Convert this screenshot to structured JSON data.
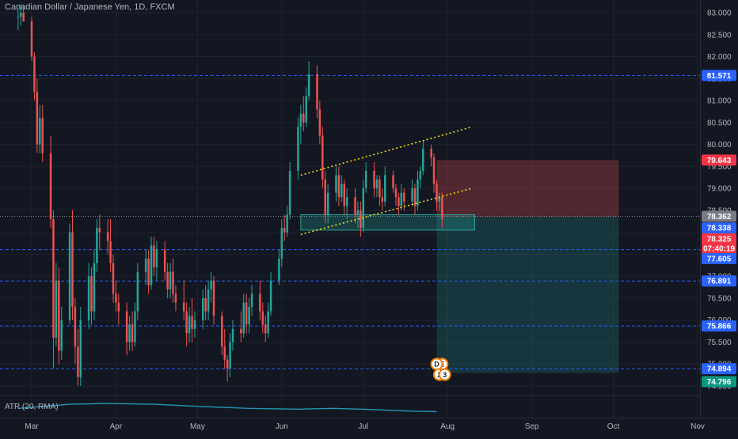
{
  "header": {
    "title": "Canadian Dollar / Japanese Yen, 1D, FXCM"
  },
  "indicator": {
    "label": "ATR (20, RMA)"
  },
  "colors": {
    "background": "#131722",
    "grid": "#1e222d",
    "up": "#26a69a",
    "down": "#ef5350",
    "level_line": "#2962ff",
    "level_label": "#2962ff",
    "channel": "#f5e113",
    "stop_zone": "#ef5350",
    "target_zone": "#26a69a",
    "atr_line": "#2196b6",
    "axis_text": "#b2b5be"
  },
  "chart_data": {
    "type": "candlestick",
    "title": "Canadian Dollar / Japanese Yen, 1D, FXCM",
    "x_ticks": [
      "Mar",
      "Apr",
      "May",
      "Jun",
      "Jul",
      "Aug",
      "Sep",
      "Oct",
      "Nov"
    ],
    "y_ticks": [
      "83.000",
      "82.500",
      "82.000",
      "81.500",
      "81.000",
      "80.500",
      "80.000",
      "79.500",
      "79.000",
      "78.500",
      "78.000",
      "77.500",
      "77.000",
      "76.500",
      "76.000",
      "75.500",
      "75.000",
      "74.500"
    ],
    "ylim": [
      74.3,
      83.2
    ],
    "horizontal_levels": [
      81.571,
      77.605,
      76.891,
      75.866,
      74.894
    ],
    "price_labels": [
      {
        "value": "81.571",
        "type": "level"
      },
      {
        "value": "79.643",
        "type": "stop"
      },
      {
        "value": "78.362",
        "type": "last"
      },
      {
        "value": "78.338",
        "type": "level"
      },
      {
        "value": "78.325",
        "type": "last"
      },
      {
        "value": "07:40:19",
        "type": "countdown"
      },
      {
        "value": "77.605",
        "type": "level"
      },
      {
        "value": "76.891",
        "type": "level"
      },
      {
        "value": "75.866",
        "type": "level"
      },
      {
        "value": "74.894",
        "type": "level"
      },
      {
        "value": "74.796",
        "type": "target"
      }
    ],
    "position": {
      "type": "short",
      "entry": 78.35,
      "stop": 79.643,
      "target": 74.796,
      "start": "2021-07-28",
      "end": "2021-10-03"
    },
    "support_zone": {
      "top": 78.4,
      "bottom": 78.05,
      "start": "2021-06-08",
      "end": "2021-08-11"
    },
    "channel": {
      "upper": {
        "start": [
          "2021-06-08",
          79.3
        ],
        "end": [
          "2021-08-10",
          80.4
        ]
      },
      "lower": {
        "start": [
          "2021-06-08",
          77.95
        ],
        "end": [
          "2021-08-10",
          79.0
        ]
      }
    },
    "badges": [
      {
        "label": "E",
        "date": "2021-07-30",
        "value": 75.0
      },
      {
        "label": "D",
        "date": "2021-07-28",
        "value": 75.0
      },
      {
        "label": "2",
        "date": "2021-07-29",
        "value": 74.76
      },
      {
        "label": "3",
        "date": "2021-07-31",
        "value": 74.76
      }
    ],
    "atr": {
      "dates": [
        "2021-02-24",
        "2021-03-15",
        "2021-03-28",
        "2021-04-15",
        "2021-05-01",
        "2021-05-20",
        "2021-06-07",
        "2021-06-20",
        "2021-07-05",
        "2021-07-20",
        "2021-07-28"
      ],
      "values": [
        0.5,
        0.6,
        0.62,
        0.6,
        0.55,
        0.5,
        0.48,
        0.5,
        0.47,
        0.43,
        0.42
      ]
    },
    "candles": [
      {
        "d": "2021-02-24",
        "o": 82.9,
        "h": 83.1,
        "l": 82.6,
        "c": 82.9
      },
      {
        "d": "2021-02-25",
        "o": 82.9,
        "h": 83.2,
        "l": 82.7,
        "c": 83.0
      },
      {
        "d": "2021-02-26",
        "o": 83.0,
        "h": 83.15,
        "l": 82.8,
        "c": 82.8
      },
      {
        "d": "2021-03-01",
        "o": 82.8,
        "h": 82.9,
        "l": 81.9,
        "c": 82.0
      },
      {
        "d": "2021-03-02",
        "o": 82.0,
        "h": 82.1,
        "l": 81.0,
        "c": 81.2
      },
      {
        "d": "2021-03-03",
        "o": 81.2,
        "h": 81.5,
        "l": 79.8,
        "c": 80.0
      },
      {
        "d": "2021-03-04",
        "o": 80.0,
        "h": 80.9,
        "l": 79.8,
        "c": 80.6
      },
      {
        "d": "2021-03-05",
        "o": 80.6,
        "h": 80.9,
        "l": 79.6,
        "c": 79.8
      },
      {
        "d": "2021-03-08",
        "o": 79.8,
        "h": 80.2,
        "l": 78.1,
        "c": 78.3
      },
      {
        "d": "2021-03-09",
        "o": 78.3,
        "h": 78.5,
        "l": 74.9,
        "c": 75.6
      },
      {
        "d": "2021-03-10",
        "o": 75.6,
        "h": 77.3,
        "l": 75.4,
        "c": 76.9
      },
      {
        "d": "2021-03-11",
        "o": 76.9,
        "h": 77.2,
        "l": 75.0,
        "c": 75.3
      },
      {
        "d": "2021-03-12",
        "o": 75.3,
        "h": 76.3,
        "l": 75.1,
        "c": 76.0
      },
      {
        "d": "2021-03-15",
        "o": 76.0,
        "h": 78.2,
        "l": 75.9,
        "c": 78.0
      },
      {
        "d": "2021-03-16",
        "o": 78.0,
        "h": 78.5,
        "l": 76.0,
        "c": 76.3
      },
      {
        "d": "2021-03-17",
        "o": 76.3,
        "h": 76.5,
        "l": 75.0,
        "c": 75.4
      },
      {
        "d": "2021-03-18",
        "o": 75.4,
        "h": 75.8,
        "l": 74.5,
        "c": 74.7
      },
      {
        "d": "2021-03-19",
        "o": 74.7,
        "h": 76.3,
        "l": 74.5,
        "c": 76.0
      },
      {
        "d": "2021-03-22",
        "o": 76.0,
        "h": 77.3,
        "l": 75.8,
        "c": 77.0
      },
      {
        "d": "2021-03-23",
        "o": 77.0,
        "h": 77.2,
        "l": 75.9,
        "c": 76.2
      },
      {
        "d": "2021-03-24",
        "o": 76.2,
        "h": 77.6,
        "l": 76.0,
        "c": 77.3
      },
      {
        "d": "2021-03-25",
        "o": 77.3,
        "h": 78.3,
        "l": 77.1,
        "c": 78.1
      },
      {
        "d": "2021-03-26",
        "o": 78.1,
        "h": 78.4,
        "l": 77.6,
        "c": 78.0
      },
      {
        "d": "2021-03-29",
        "o": 78.0,
        "h": 78.3,
        "l": 77.5,
        "c": 77.8
      },
      {
        "d": "2021-03-30",
        "o": 77.8,
        "h": 78.3,
        "l": 77.1,
        "c": 77.3
      },
      {
        "d": "2021-03-31",
        "o": 77.3,
        "h": 77.5,
        "l": 76.4,
        "c": 76.6
      },
      {
        "d": "2021-04-01",
        "o": 76.6,
        "h": 76.9,
        "l": 76.2,
        "c": 76.4
      },
      {
        "d": "2021-04-02",
        "o": 76.4,
        "h": 76.6,
        "l": 75.9,
        "c": 76.2
      },
      {
        "d": "2021-04-05",
        "o": 76.2,
        "h": 76.4,
        "l": 75.2,
        "c": 75.5
      },
      {
        "d": "2021-04-06",
        "o": 75.5,
        "h": 76.1,
        "l": 75.3,
        "c": 75.9
      },
      {
        "d": "2021-04-07",
        "o": 75.9,
        "h": 76.2,
        "l": 75.3,
        "c": 75.5
      },
      {
        "d": "2021-04-08",
        "o": 75.5,
        "h": 76.4,
        "l": 75.4,
        "c": 76.2
      },
      {
        "d": "2021-04-09",
        "o": 76.2,
        "h": 77.3,
        "l": 76.0,
        "c": 77.1
      },
      {
        "d": "2021-04-12",
        "o": 77.1,
        "h": 77.6,
        "l": 76.8,
        "c": 77.4
      },
      {
        "d": "2021-04-13",
        "o": 77.4,
        "h": 77.6,
        "l": 76.6,
        "c": 76.8
      },
      {
        "d": "2021-04-14",
        "o": 76.8,
        "h": 77.9,
        "l": 76.7,
        "c": 77.7
      },
      {
        "d": "2021-04-15",
        "o": 77.7,
        "h": 77.9,
        "l": 77.0,
        "c": 77.2
      },
      {
        "d": "2021-04-16",
        "o": 77.2,
        "h": 77.8,
        "l": 76.9,
        "c": 77.6
      },
      {
        "d": "2021-04-19",
        "o": 77.6,
        "h": 77.8,
        "l": 76.9,
        "c": 77.1
      },
      {
        "d": "2021-04-20",
        "o": 77.1,
        "h": 77.3,
        "l": 76.5,
        "c": 76.7
      },
      {
        "d": "2021-04-21",
        "o": 76.7,
        "h": 77.3,
        "l": 76.5,
        "c": 77.1
      },
      {
        "d": "2021-04-22",
        "o": 77.1,
        "h": 77.4,
        "l": 76.4,
        "c": 76.6
      },
      {
        "d": "2021-04-23",
        "o": 76.6,
        "h": 76.8,
        "l": 76.2,
        "c": 76.4
      },
      {
        "d": "2021-04-26",
        "o": 76.4,
        "h": 76.9,
        "l": 76.0,
        "c": 76.2
      },
      {
        "d": "2021-04-27",
        "o": 76.2,
        "h": 76.4,
        "l": 75.4,
        "c": 75.7
      },
      {
        "d": "2021-04-28",
        "o": 75.7,
        "h": 76.3,
        "l": 75.5,
        "c": 76.1
      },
      {
        "d": "2021-04-29",
        "o": 76.1,
        "h": 76.5,
        "l": 75.5,
        "c": 75.8
      },
      {
        "d": "2021-04-30",
        "o": 75.8,
        "h": 76.2,
        "l": 75.6,
        "c": 76.0
      },
      {
        "d": "2021-05-03",
        "o": 76.0,
        "h": 76.7,
        "l": 75.8,
        "c": 76.5
      },
      {
        "d": "2021-05-04",
        "o": 76.5,
        "h": 76.8,
        "l": 76.0,
        "c": 76.2
      },
      {
        "d": "2021-05-05",
        "o": 76.2,
        "h": 76.9,
        "l": 76.0,
        "c": 76.7
      },
      {
        "d": "2021-05-06",
        "o": 76.7,
        "h": 77.1,
        "l": 76.4,
        "c": 76.9
      },
      {
        "d": "2021-05-07",
        "o": 76.9,
        "h": 77.0,
        "l": 75.9,
        "c": 76.1
      },
      {
        "d": "2021-05-10",
        "o": 76.1,
        "h": 76.2,
        "l": 75.2,
        "c": 75.4
      },
      {
        "d": "2021-05-11",
        "o": 75.4,
        "h": 75.8,
        "l": 74.9,
        "c": 75.1
      },
      {
        "d": "2021-05-12",
        "o": 75.1,
        "h": 75.2,
        "l": 74.6,
        "c": 74.9
      },
      {
        "d": "2021-05-13",
        "o": 74.9,
        "h": 75.7,
        "l": 74.7,
        "c": 75.5
      },
      {
        "d": "2021-05-14",
        "o": 75.5,
        "h": 76.0,
        "l": 75.3,
        "c": 75.8
      },
      {
        "d": "2021-05-17",
        "o": 75.8,
        "h": 76.2,
        "l": 75.5,
        "c": 75.7
      },
      {
        "d": "2021-05-18",
        "o": 75.7,
        "h": 76.6,
        "l": 75.6,
        "c": 76.4
      },
      {
        "d": "2021-05-19",
        "o": 76.4,
        "h": 76.6,
        "l": 75.7,
        "c": 75.9
      },
      {
        "d": "2021-05-20",
        "o": 75.9,
        "h": 76.5,
        "l": 75.7,
        "c": 76.3
      },
      {
        "d": "2021-05-21",
        "o": 76.3,
        "h": 76.8,
        "l": 76.1,
        "c": 76.6
      },
      {
        "d": "2021-05-24",
        "o": 76.6,
        "h": 76.9,
        "l": 76.0,
        "c": 76.2
      },
      {
        "d": "2021-05-25",
        "o": 76.2,
        "h": 76.4,
        "l": 75.7,
        "c": 75.9
      },
      {
        "d": "2021-05-26",
        "o": 75.9,
        "h": 76.1,
        "l": 75.5,
        "c": 75.7
      },
      {
        "d": "2021-05-27",
        "o": 75.7,
        "h": 76.4,
        "l": 75.6,
        "c": 76.2
      },
      {
        "d": "2021-05-28",
        "o": 76.2,
        "h": 77.1,
        "l": 76.1,
        "c": 76.9
      },
      {
        "d": "2021-05-31",
        "o": 76.9,
        "h": 77.6,
        "l": 76.8,
        "c": 77.4
      },
      {
        "d": "2021-06-01",
        "o": 77.4,
        "h": 78.3,
        "l": 77.2,
        "c": 78.1
      },
      {
        "d": "2021-06-02",
        "o": 78.1,
        "h": 78.4,
        "l": 77.8,
        "c": 78.0
      },
      {
        "d": "2021-06-03",
        "o": 78.0,
        "h": 78.6,
        "l": 77.9,
        "c": 78.4
      },
      {
        "d": "2021-06-04",
        "o": 78.4,
        "h": 79.6,
        "l": 78.3,
        "c": 79.4
      },
      {
        "d": "2021-06-07",
        "o": 79.4,
        "h": 80.6,
        "l": 79.2,
        "c": 80.4
      },
      {
        "d": "2021-06-08",
        "o": 80.4,
        "h": 80.9,
        "l": 80.0,
        "c": 80.7
      },
      {
        "d": "2021-06-09",
        "o": 80.7,
        "h": 81.1,
        "l": 80.3,
        "c": 80.5
      },
      {
        "d": "2021-06-10",
        "o": 80.5,
        "h": 81.3,
        "l": 80.4,
        "c": 81.1
      },
      {
        "d": "2021-06-11",
        "o": 81.1,
        "h": 81.9,
        "l": 81.0,
        "c": 81.6
      },
      {
        "d": "2021-06-14",
        "o": 81.6,
        "h": 81.8,
        "l": 80.6,
        "c": 80.8
      },
      {
        "d": "2021-06-15",
        "o": 80.8,
        "h": 81.0,
        "l": 80.0,
        "c": 80.2
      },
      {
        "d": "2021-06-16",
        "o": 80.2,
        "h": 80.4,
        "l": 79.0,
        "c": 79.2
      },
      {
        "d": "2021-06-17",
        "o": 79.2,
        "h": 79.4,
        "l": 78.2,
        "c": 78.4
      },
      {
        "d": "2021-06-18",
        "o": 78.4,
        "h": 79.1,
        "l": 78.2,
        "c": 78.9
      },
      {
        "d": "2021-06-21",
        "o": 78.9,
        "h": 79.5,
        "l": 78.7,
        "c": 79.3
      },
      {
        "d": "2021-06-22",
        "o": 79.3,
        "h": 79.5,
        "l": 78.6,
        "c": 78.8
      },
      {
        "d": "2021-06-23",
        "o": 78.8,
        "h": 79.3,
        "l": 78.7,
        "c": 79.1
      },
      {
        "d": "2021-06-24",
        "o": 79.1,
        "h": 79.2,
        "l": 78.4,
        "c": 78.6
      },
      {
        "d": "2021-06-25",
        "o": 78.6,
        "h": 79.0,
        "l": 78.3,
        "c": 78.8
      },
      {
        "d": "2021-06-28",
        "o": 78.8,
        "h": 79.0,
        "l": 78.2,
        "c": 78.4
      },
      {
        "d": "2021-06-29",
        "o": 78.4,
        "h": 78.7,
        "l": 78.1,
        "c": 78.5
      },
      {
        "d": "2021-06-30",
        "o": 78.5,
        "h": 78.7,
        "l": 77.9,
        "c": 78.1
      },
      {
        "d": "2021-07-01",
        "o": 78.1,
        "h": 79.2,
        "l": 78.0,
        "c": 79.0
      },
      {
        "d": "2021-07-02",
        "o": 79.0,
        "h": 79.6,
        "l": 78.9,
        "c": 79.4
      },
      {
        "d": "2021-07-05",
        "o": 79.4,
        "h": 79.6,
        "l": 78.8,
        "c": 79.0
      },
      {
        "d": "2021-07-06",
        "o": 79.0,
        "h": 79.3,
        "l": 78.8,
        "c": 79.2
      },
      {
        "d": "2021-07-07",
        "o": 79.2,
        "h": 79.3,
        "l": 78.6,
        "c": 78.8
      },
      {
        "d": "2021-07-08",
        "o": 78.8,
        "h": 79.0,
        "l": 78.5,
        "c": 78.7
      },
      {
        "d": "2021-07-09",
        "o": 78.7,
        "h": 79.5,
        "l": 78.6,
        "c": 79.3
      },
      {
        "d": "2021-07-12",
        "o": 79.3,
        "h": 79.4,
        "l": 78.9,
        "c": 79.0
      },
      {
        "d": "2021-07-13",
        "o": 79.0,
        "h": 79.1,
        "l": 78.6,
        "c": 78.8
      },
      {
        "d": "2021-07-14",
        "o": 78.8,
        "h": 78.9,
        "l": 78.4,
        "c": 78.6
      },
      {
        "d": "2021-07-15",
        "o": 78.6,
        "h": 79.1,
        "l": 78.5,
        "c": 78.9
      },
      {
        "d": "2021-07-16",
        "o": 78.9,
        "h": 79.0,
        "l": 78.5,
        "c": 78.7
      },
      {
        "d": "2021-07-19",
        "o": 78.7,
        "h": 79.2,
        "l": 78.6,
        "c": 79.0
      },
      {
        "d": "2021-07-20",
        "o": 79.0,
        "h": 79.1,
        "l": 78.4,
        "c": 78.6
      },
      {
        "d": "2021-07-21",
        "o": 78.6,
        "h": 79.4,
        "l": 78.5,
        "c": 79.2
      },
      {
        "d": "2021-07-22",
        "o": 79.2,
        "h": 79.5,
        "l": 79.0,
        "c": 79.4
      },
      {
        "d": "2021-07-23",
        "o": 79.4,
        "h": 80.1,
        "l": 79.3,
        "c": 79.9
      },
      {
        "d": "2021-07-26",
        "o": 79.9,
        "h": 80.0,
        "l": 79.5,
        "c": 79.7
      },
      {
        "d": "2021-07-27",
        "o": 79.7,
        "h": 79.8,
        "l": 78.9,
        "c": 79.1
      },
      {
        "d": "2021-07-28",
        "o": 79.1,
        "h": 79.2,
        "l": 78.5,
        "c": 78.7
      },
      {
        "d": "2021-07-29",
        "o": 78.7,
        "h": 78.9,
        "l": 78.5,
        "c": 78.8
      },
      {
        "d": "2021-07-30",
        "o": 78.8,
        "h": 78.9,
        "l": 78.1,
        "c": 78.3
      }
    ]
  }
}
